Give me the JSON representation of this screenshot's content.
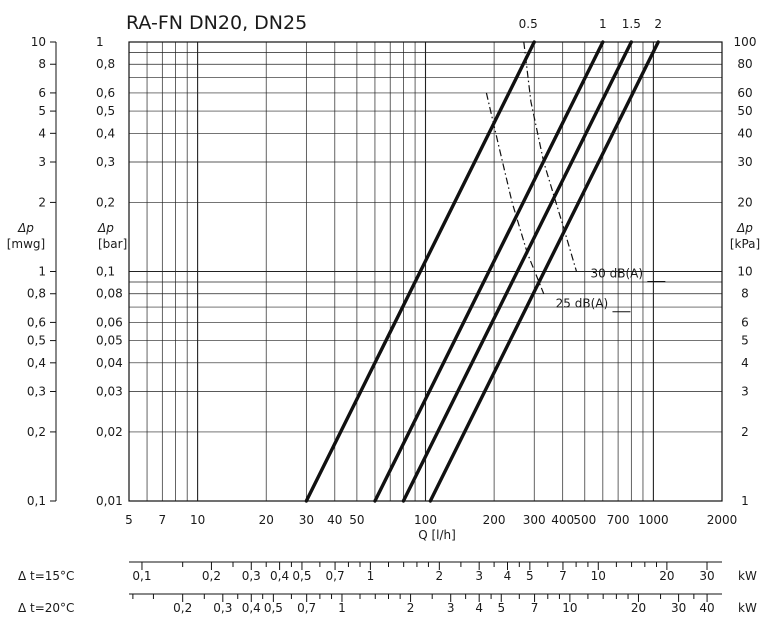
{
  "chart_data": {
    "type": "line",
    "title": "RA-FN  DN20, DN25",
    "x_scale": "log",
    "y_scale": "log",
    "grid": true,
    "xlim": [
      5,
      2000
    ],
    "ylim": [
      0.01,
      1
    ],
    "xlabel": "Q [l/h]",
    "y_axes": {
      "mwg": {
        "label_line1": "Δp",
        "label_line2": "[mwg]",
        "ticks": [
          "10",
          "8",
          "6",
          "5",
          "4",
          "3",
          "2",
          "1",
          "0,8",
          "0,6",
          "0,5",
          "0,4",
          "0,3",
          "0,2",
          "0,1"
        ],
        "values": [
          10,
          8,
          6,
          5,
          4,
          3,
          2,
          1,
          0.8,
          0.6,
          0.5,
          0.4,
          0.3,
          0.2,
          0.1
        ]
      },
      "bar": {
        "label_line1": "Δp",
        "label_line2": "[bar]",
        "ticks": [
          "1",
          "0,8",
          "0,6",
          "0,5",
          "0,4",
          "0,3",
          "0,2",
          "0,1",
          "0,08",
          "0,06",
          "0,05",
          "0,04",
          "0,03",
          "0,02",
          "0,01"
        ],
        "values": [
          1,
          0.8,
          0.6,
          0.5,
          0.4,
          0.3,
          0.2,
          0.1,
          0.08,
          0.06,
          0.05,
          0.04,
          0.03,
          0.02,
          0.01
        ]
      },
      "kpa": {
        "label_line1": "Δp",
        "label_line2": "[kPa]",
        "ticks": [
          "100",
          "80",
          "60",
          "50",
          "40",
          "30",
          "20",
          "10",
          "8",
          "6",
          "5",
          "4",
          "3",
          "2",
          "1"
        ],
        "values": [
          100,
          80,
          60,
          50,
          40,
          30,
          20,
          10,
          8,
          6,
          5,
          4,
          3,
          2,
          1
        ]
      }
    },
    "x_ticks": {
      "labels": [
        "5",
        "7",
        "10",
        "20",
        "30",
        "40",
        "50",
        "100",
        "200",
        "300",
        "400",
        "500",
        "700",
        "1000",
        "2000"
      ],
      "values": [
        5,
        7,
        10,
        20,
        30,
        40,
        50,
        100,
        200,
        300,
        400,
        500,
        700,
        1000,
        2000
      ]
    },
    "series": [
      {
        "name": "0.5",
        "q_at_0_01_bar": 30,
        "q_at_1_bar": 300
      },
      {
        "name": "1",
        "q_at_0_01_bar": 60,
        "q_at_1_bar": 600
      },
      {
        "name": "1.5",
        "q_at_0_01_bar": 80,
        "q_at_1_bar": 800
      },
      {
        "name": "2",
        "q_at_0_01_bar": 105,
        "q_at_1_bar": 1050
      }
    ],
    "noise_curves": [
      {
        "name": "30  dB(A)",
        "points": [
          [
            270,
            1
          ],
          [
            290,
            0.55
          ],
          [
            330,
            0.3
          ],
          [
            400,
            0.16
          ],
          [
            460,
            0.1
          ]
        ]
      },
      {
        "name": "25  dB(A)",
        "points": [
          [
            185,
            0.6
          ],
          [
            210,
            0.35
          ],
          [
            240,
            0.2
          ],
          [
            280,
            0.12
          ],
          [
            330,
            0.08
          ]
        ]
      }
    ],
    "secondary_x_axes": [
      {
        "label": "Δ t=15°C",
        "unit": "kW",
        "ticks": [
          {
            "label": "0,1",
            "q": 5.7
          },
          {
            "label": "0,2",
            "q": 11.5
          },
          {
            "label": "0,3",
            "q": 17.2
          },
          {
            "label": "0,4",
            "q": 22.9
          },
          {
            "label": "0,5",
            "q": 28.7
          },
          {
            "label": "0,7",
            "q": 40.1
          },
          {
            "label": "1",
            "q": 57.3
          },
          {
            "label": "2",
            "q": 115
          },
          {
            "label": "3",
            "q": 172
          },
          {
            "label": "4",
            "q": 229
          },
          {
            "label": "5",
            "q": 287
          },
          {
            "label": "7",
            "q": 401
          },
          {
            "label": "10",
            "q": 573
          },
          {
            "label": "20",
            "q": 1146
          },
          {
            "label": "30",
            "q": 1719
          }
        ],
        "minor": [
          8.6,
          14.3,
          20,
          25.8,
          34.4,
          45.9,
          51.6,
          68.8,
          80.2,
          91.7,
          103,
          143,
          200,
          258,
          344,
          458,
          516,
          688,
          802,
          917,
          1032
        ]
      },
      {
        "label": "Δ t=20°C",
        "unit": "kW",
        "ticks": [
          {
            "label": "0,2",
            "q": 8.6
          },
          {
            "label": "0,3",
            "q": 12.9
          },
          {
            "label": "0,4",
            "q": 17.2
          },
          {
            "label": "0,5",
            "q": 21.5
          },
          {
            "label": "0,7",
            "q": 30.1
          },
          {
            "label": "1",
            "q": 43
          },
          {
            "label": "2",
            "q": 86
          },
          {
            "label": "3",
            "q": 129
          },
          {
            "label": "4",
            "q": 172
          },
          {
            "label": "5",
            "q": 215
          },
          {
            "label": "7",
            "q": 301
          },
          {
            "label": "10",
            "q": 430
          },
          {
            "label": "20",
            "q": 860
          },
          {
            "label": "30",
            "q": 1290
          },
          {
            "label": "40",
            "q": 1720
          }
        ],
        "minor": [
          5.2,
          6.4,
          10.7,
          15,
          19.3,
          25.8,
          34.4,
          38.7,
          51.6,
          60.2,
          68.8,
          77.4,
          107,
          150,
          194,
          258,
          344,
          387,
          516,
          602,
          688,
          774,
          1075,
          1505
        ]
      }
    ]
  }
}
